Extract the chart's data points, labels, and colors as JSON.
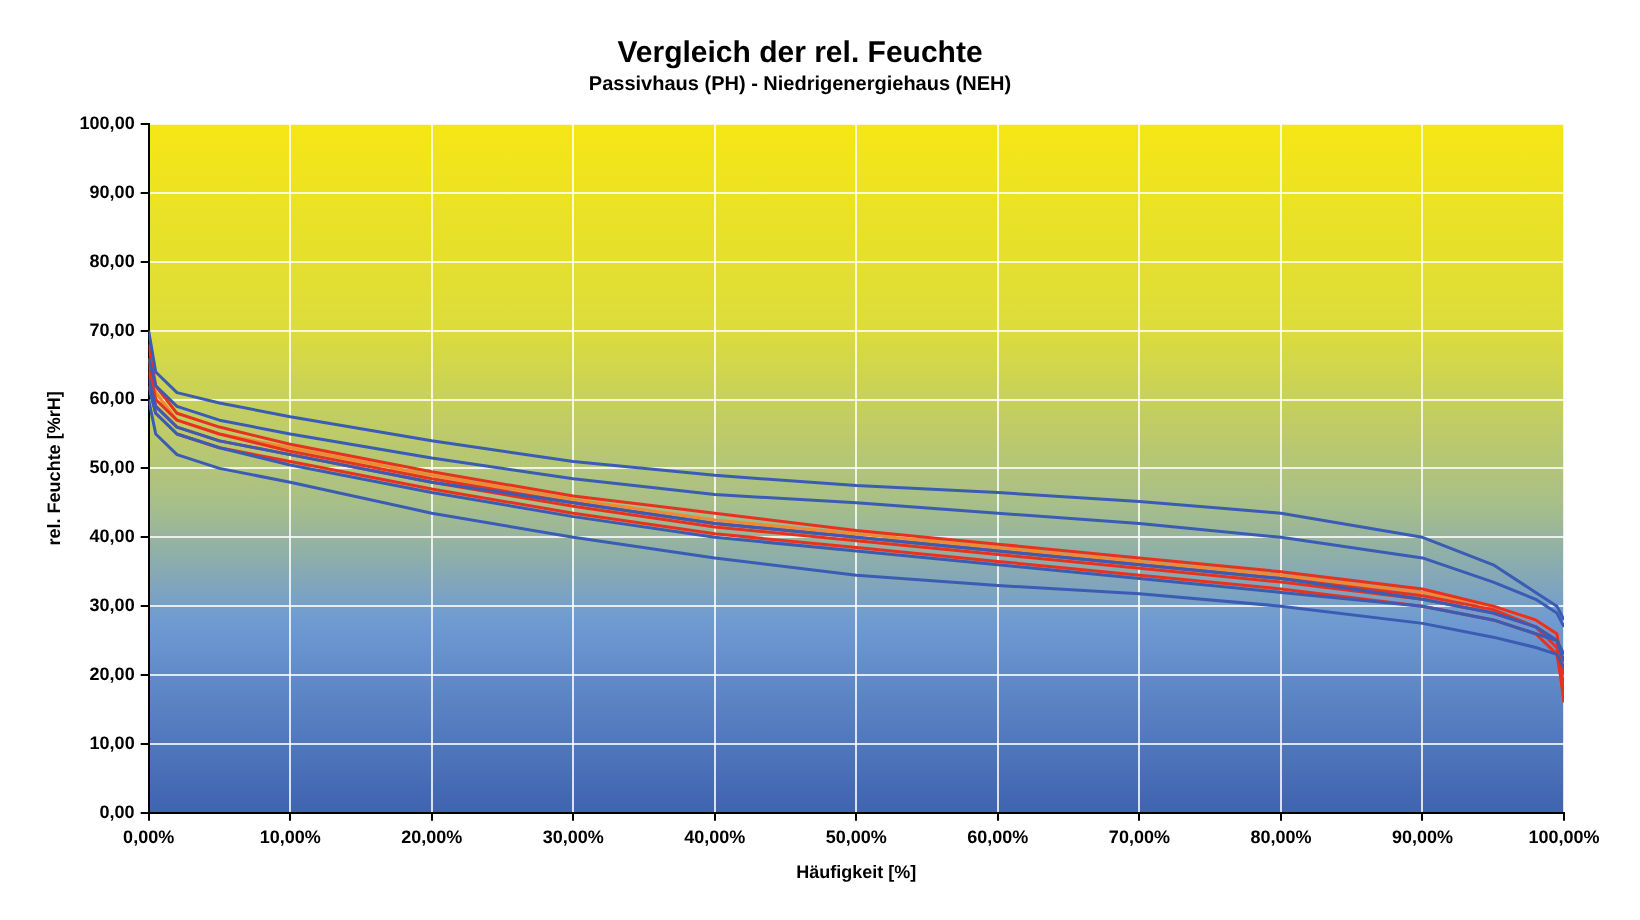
{
  "chart_data": {
    "type": "line",
    "title": "Vergleich der rel. Feuchte",
    "subtitle": "Passivhaus (PH) - Niedrigenergiehaus (NEH)",
    "xlabel": "Häufigkeit [%]",
    "ylabel": "rel. Feuchte [%rH]",
    "x": [
      0,
      0.5,
      2,
      5,
      10,
      20,
      30,
      40,
      50,
      60,
      70,
      80,
      90,
      95,
      98,
      99.5,
      100
    ],
    "xlim": [
      0,
      100
    ],
    "xticks": [
      {
        "value": 0,
        "label": "0,00%"
      },
      {
        "value": 10,
        "label": "10,00%"
      },
      {
        "value": 20,
        "label": "20,00%"
      },
      {
        "value": 30,
        "label": "30,00%"
      },
      {
        "value": 40,
        "label": "40,00%"
      },
      {
        "value": 50,
        "label": "50,00%"
      },
      {
        "value": 60,
        "label": "60,00%"
      },
      {
        "value": 70,
        "label": "70,00%"
      },
      {
        "value": 80,
        "label": "80,00%"
      },
      {
        "value": 90,
        "label": "90,00%"
      },
      {
        "value": 100,
        "label": "100,00%"
      }
    ],
    "ylim": [
      0,
      100
    ],
    "yticks": [
      {
        "value": 0,
        "label": "0,00"
      },
      {
        "value": 10,
        "label": "10,00"
      },
      {
        "value": 20,
        "label": "20,00"
      },
      {
        "value": 30,
        "label": "30,00"
      },
      {
        "value": 40,
        "label": "40,00"
      },
      {
        "value": 50,
        "label": "50,00"
      },
      {
        "value": 60,
        "label": "60,00"
      },
      {
        "value": 70,
        "label": "70,00"
      },
      {
        "value": 80,
        "label": "80,00"
      },
      {
        "value": 90,
        "label": "90,00"
      },
      {
        "value": 100,
        "label": "100,00"
      }
    ],
    "grid": true,
    "legend": false,
    "marker": "none",
    "line_style": "solid",
    "series": [
      {
        "color": "#3a5cb4",
        "values": [
          70,
          64,
          61,
          59.5,
          57.5,
          54,
          51,
          49,
          47.5,
          46.5,
          45.2,
          43.5,
          40,
          36,
          32,
          30,
          28
        ]
      },
      {
        "color": "#3a5cb4",
        "values": [
          66,
          62,
          59,
          57,
          55,
          51.5,
          48.5,
          46.2,
          45,
          43.5,
          42,
          40,
          37,
          33.5,
          31,
          29,
          27
        ]
      },
      {
        "color": "#3a5cb4",
        "values": [
          60,
          55,
          52,
          50,
          48,
          43.5,
          40,
          37,
          34.5,
          33,
          31.8,
          30,
          27.5,
          25.5,
          24,
          23,
          21
        ]
      },
      {
        "color": "#3a5cb4",
        "values": [
          63,
          59,
          56,
          54,
          52,
          48,
          45,
          42,
          40,
          38,
          36,
          34,
          31,
          29,
          27,
          25,
          22
        ]
      },
      {
        "color": "#3a5cb4",
        "values": [
          62,
          58,
          55,
          53,
          50.5,
          46.5,
          43,
          40,
          38,
          36,
          34,
          32,
          30,
          28,
          26,
          25,
          23
        ]
      },
      {
        "color": "#e8321e",
        "values": [
          68,
          62,
          58,
          56,
          53.5,
          49.5,
          46,
          43.5,
          41,
          39,
          37,
          35,
          32.5,
          30,
          28,
          26,
          20
        ]
      },
      {
        "color": "#e8321e",
        "values": [
          65,
          60,
          57,
          55,
          52.5,
          48.5,
          45,
          42,
          40,
          38,
          36,
          34,
          31.5,
          29.5,
          27,
          25,
          18
        ]
      },
      {
        "color": "#e8321e",
        "values": [
          64,
          59,
          56,
          54,
          52,
          48,
          44.5,
          41.5,
          39.5,
          37.5,
          35.5,
          33.5,
          31,
          29,
          27,
          24,
          16
        ]
      },
      {
        "color": "#e8321e",
        "values": [
          62,
          58,
          55,
          53,
          51,
          47,
          43.5,
          40.5,
          38.5,
          36.5,
          34.5,
          32.5,
          30,
          28,
          26,
          23,
          17
        ]
      },
      {
        "color": "#f08a30",
        "values": [
          66,
          61,
          57,
          55,
          53,
          49,
          45.5,
          42.5,
          40.5,
          38.5,
          36.5,
          34.5,
          32,
          30,
          28,
          26,
          21
        ]
      }
    ]
  }
}
